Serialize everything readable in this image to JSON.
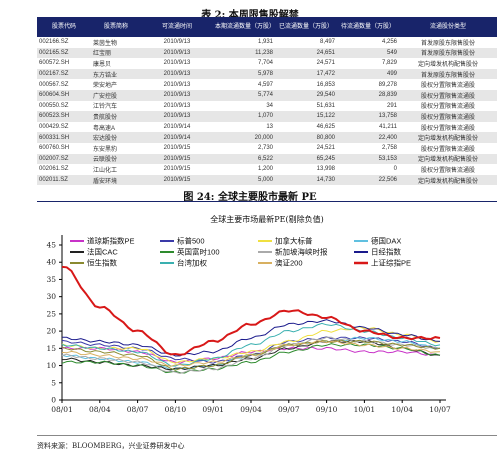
{
  "table": {
    "title": "表 2:  本周限售股解禁",
    "headers": [
      "股票代码",
      "股票简称",
      "可流通时间",
      "本期流通数量（万股）",
      "已流通数量（万股）",
      "待流通数量（万股）",
      "流通股份类型"
    ],
    "rows": [
      [
        "002166.SZ",
        "莱茵生物",
        "2010/9/13",
        "1,931",
        "8,497",
        "4,256",
        "首发原股东限售股份"
      ],
      [
        "002165.SZ",
        "红宝丽",
        "2010/9/13",
        "11,238",
        "24,651",
        "549",
        "首发原股东限售股份"
      ],
      [
        "600572.SH",
        "康恩贝",
        "2010/9/13",
        "7,704",
        "24,571",
        "7,829",
        "定向增发机构配售股份"
      ],
      [
        "002167.SZ",
        "东方锆业",
        "2010/9/13",
        "5,978",
        "17,472",
        "499",
        "首发原股东限售股份"
      ],
      [
        "000567.SZ",
        "荣安地产",
        "2010/9/13",
        "4,597",
        "16,853",
        "89,278",
        "股权分置限售流通股"
      ],
      [
        "600604.SH",
        "广安控股",
        "2010/9/13",
        "5,774",
        "29,540",
        "28,839",
        "股权分置限售流通股"
      ],
      [
        "000550.SZ",
        "江铃汽车",
        "2010/9/13",
        "34",
        "51,631",
        "291",
        "股权分置限售流通股"
      ],
      [
        "600523.SH",
        "贵航股份",
        "2010/9/13",
        "1,070",
        "15,122",
        "13,758",
        "股权分置限售流通股"
      ],
      [
        "000429.SZ",
        "粤高速A",
        "2010/9/14",
        "13",
        "46,625",
        "41,211",
        "股权分置限售流通股"
      ],
      [
        "600331.SH",
        "宏达股份",
        "2010/9/14",
        "20,000",
        "80,800",
        "22,400",
        "定向增发机构配售股份"
      ],
      [
        "600760.SH",
        "东安黑豹",
        "2010/9/15",
        "2,730",
        "24,521",
        "2,758",
        "股权分置限售流通股"
      ],
      [
        "002007.SZ",
        "云联股份",
        "2010/9/15",
        "6,522",
        "65,245",
        "53,153",
        "定向增发机构配售股份"
      ],
      [
        "002061.SZ",
        "江山化工",
        "2010/9/15",
        "1,200",
        "13,998",
        "0",
        "股权分置限售流通股"
      ],
      [
        "002011.SZ",
        "盾安环境",
        "2010/9/15",
        "5,000",
        "14,730",
        "22,506",
        "定向增发机构配售股份"
      ]
    ]
  },
  "figure": {
    "title": "图 24:  全球主要股市最新 PE",
    "source": "资料来源：BLOOMBERG，兴业证券研发中心"
  },
  "chart_data": {
    "type": "line",
    "title": "全球主要市场最新PE(剔除负值)",
    "x": [
      "08/01",
      "08/04",
      "08/07",
      "08/10",
      "09/01",
      "09/04",
      "09/07",
      "09/10",
      "10/01",
      "10/04",
      "10/07"
    ],
    "ylim": [
      0,
      45
    ],
    "yticks": [
      0,
      5,
      10,
      15,
      20,
      25,
      30,
      35,
      40,
      45
    ],
    "xticks": [
      "08/01",
      "08/04",
      "08/07",
      "08/10",
      "09/01",
      "09/04",
      "09/07",
      "09/10",
      "10/01",
      "10/04",
      "10/07"
    ],
    "grid": false,
    "legend_position": "top",
    "series": [
      {
        "name": "道琼斯指数PE",
        "color": "#c832c8",
        "values": [
          15,
          15,
          14,
          11,
          12,
          14,
          15,
          15,
          14,
          14,
          13
        ]
      },
      {
        "name": "标普500",
        "color": "#3a3aa8",
        "values": [
          17,
          16,
          15,
          12,
          11,
          13,
          17,
          18,
          18,
          17,
          15
        ]
      },
      {
        "name": "加拿大标普",
        "color": "#f0e040",
        "values": [
          16,
          15,
          15,
          11,
          12,
          14,
          17,
          20,
          21,
          19,
          17
        ]
      },
      {
        "name": "德国DAX",
        "color": "#60c0e0",
        "values": [
          13,
          12,
          11,
          9,
          10,
          13,
          16,
          17,
          18,
          17,
          15
        ]
      },
      {
        "name": "法国CAC",
        "color": "#222222",
        "values": [
          12,
          11,
          10,
          9,
          10,
          12,
          15,
          17,
          17,
          15,
          13
        ]
      },
      {
        "name": "英国富时100",
        "color": "#2e8b2e",
        "values": [
          11,
          11,
          10,
          8,
          9,
          11,
          14,
          16,
          16,
          15,
          13
        ]
      },
      {
        "name": "新加坡海峡时报",
        "color": "#aaaaaa",
        "values": [
          13,
          12,
          11,
          8,
          9,
          12,
          16,
          18,
          17,
          16,
          15
        ]
      },
      {
        "name": "日经指数",
        "color": "#1a1a8c",
        "values": [
          18,
          17,
          16,
          13,
          14,
          18,
          22,
          23,
          21,
          19,
          17
        ]
      },
      {
        "name": "恒生指数",
        "color": "#8a8a30",
        "values": [
          15,
          14,
          13,
          9,
          10,
          13,
          16,
          17,
          17,
          16,
          15
        ]
      },
      {
        "name": "台湾加权",
        "color": "#3ab0b0",
        "values": [
          16,
          15,
          14,
          10,
          12,
          16,
          20,
          22,
          20,
          18,
          16
        ]
      },
      {
        "name": "澳证200",
        "color": "#d8b060",
        "values": [
          14,
          13,
          12,
          10,
          11,
          13,
          16,
          17,
          16,
          15,
          14
        ]
      },
      {
        "name": "上证综指PE",
        "color": "#d81818",
        "values": [
          39,
          27,
          20,
          13,
          17,
          22,
          26,
          24,
          20,
          18,
          18
        ]
      }
    ]
  }
}
